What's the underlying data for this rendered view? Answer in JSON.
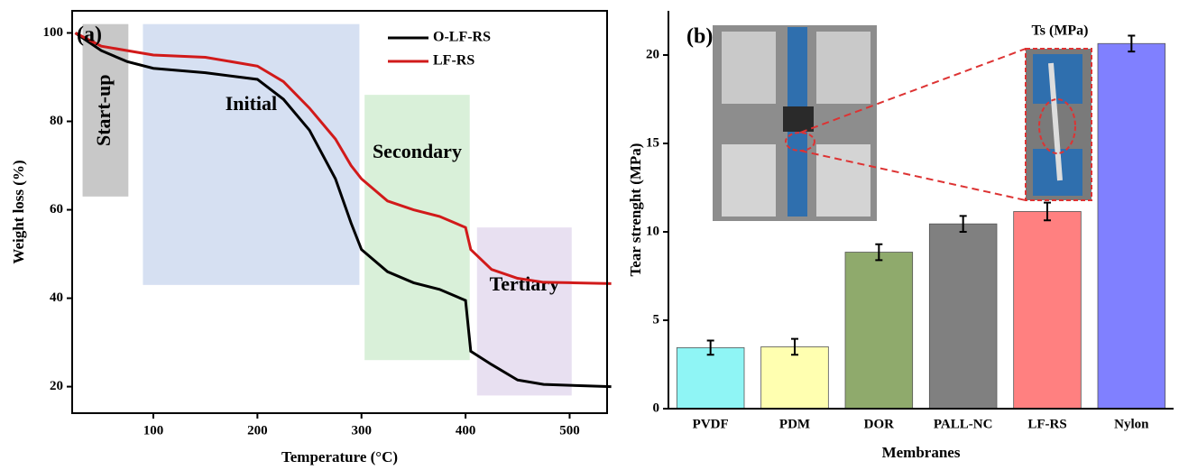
{
  "chart_data": [
    {
      "type": "line",
      "panel_label": "(a)",
      "x_label": "Temperature (°C)",
      "y_label": "Weight loss (%)",
      "x": [
        25,
        50,
        75,
        100,
        150,
        200,
        225,
        250,
        275,
        290,
        300,
        325,
        350,
        375,
        400,
        405,
        425,
        450,
        475,
        500,
        540
      ],
      "series": [
        {
          "name": "O-LF-RS",
          "color": "#000000",
          "values": [
            100,
            96,
            93.5,
            92,
            91,
            89.5,
            85,
            78,
            67,
            57,
            51,
            46,
            43.5,
            42,
            39.5,
            28,
            25,
            21.5,
            20.5,
            20.3,
            20
          ]
        },
        {
          "name": "LF-RS",
          "color": "#d11a1a",
          "values": [
            100,
            97,
            96,
            95,
            94.5,
            92.5,
            89,
            83,
            76,
            70,
            67,
            62,
            60,
            58.5,
            56,
            51,
            46.5,
            44.5,
            43.6,
            43.5,
            43.3
          ]
        }
      ],
      "regions": [
        {
          "label": "Start-up",
          "x": [
            32,
            76
          ],
          "y": [
            63,
            102
          ],
          "color": "#9a9a9a"
        },
        {
          "label": "Initial",
          "x": [
            90,
            298
          ],
          "y": [
            43,
            102
          ],
          "color": "#b4c7e7"
        },
        {
          "label": "Secondary",
          "x": [
            303,
            404
          ],
          "y": [
            26,
            86
          ],
          "color": "#b9e4b9"
        },
        {
          "label": "Tertiary",
          "x": [
            411,
            502
          ],
          "y": [
            18,
            56
          ],
          "color": "#d5c6e6"
        }
      ],
      "xlim": [
        22,
        536
      ],
      "xticks": [
        100,
        200,
        300,
        400,
        500
      ],
      "ylim": [
        14,
        105
      ],
      "yticks": [
        20,
        40,
        60,
        80,
        100
      ]
    },
    {
      "type": "bar",
      "panel_label": "(b)",
      "title": "Ts (MPa)",
      "x_label": "Membranes",
      "y_label": "Tear strenght (MPa)",
      "categories": [
        "PVDF",
        "PDM",
        "DOR",
        "PALL-NC",
        "LF-RS",
        "Nylon"
      ],
      "values": [
        3.45,
        3.5,
        8.85,
        10.45,
        11.15,
        20.65
      ],
      "errors": [
        0.4,
        0.45,
        0.45,
        0.45,
        0.5,
        0.45
      ],
      "colors": [
        "#8ff5f5",
        "#ffffb0",
        "#8faa6c",
        "#808080",
        "#ff8080",
        "#8080ff"
      ],
      "ylim": [
        0,
        22.5
      ],
      "yticks": [
        0,
        5,
        10,
        15,
        20
      ]
    }
  ]
}
